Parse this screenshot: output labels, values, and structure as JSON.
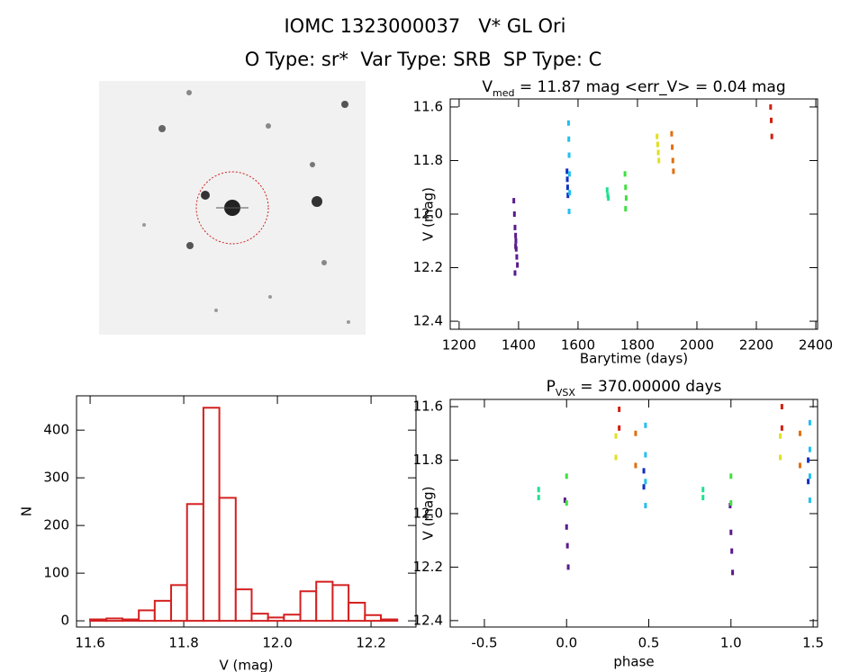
{
  "header": {
    "title": "IOMC 1323000037   V* GL Ori",
    "subtitle": "O Type: sr*  Var Type: SRB  SP Type: C"
  },
  "chart_data": [
    {
      "type": "scatter",
      "title": [
        "V",
        "med",
        " = 11.87 mag <err_V> = 0.04 mag"
      ],
      "xlabel": "Barytime (days)",
      "ylabel": "V (mag)",
      "xlim": [
        1170,
        2406
      ],
      "xticks": [
        1200,
        1400,
        1600,
        1800,
        2000,
        2200,
        2400
      ],
      "ylim": [
        12.43,
        11.57
      ],
      "yticks": [
        11.6,
        11.8,
        {
          "value": 12.0,
          "label": "12.0"
        },
        12.2,
        12.4
      ],
      "series": [
        {
          "color": "#5a1a8c",
          "x": [
            1384,
            1386,
            1388,
            1390,
            1391,
            1392,
            1394,
            1396,
            1388,
            1390
          ],
          "values": [
            11.95,
            12.0,
            12.05,
            12.08,
            12.1,
            12.13,
            12.16,
            12.19,
            12.22,
            12.12
          ]
        },
        {
          "color": "#1030c0",
          "x": [
            1563,
            1564,
            1565,
            1566
          ],
          "values": [
            11.84,
            11.87,
            11.9,
            11.93
          ]
        },
        {
          "color": "#20c0f0",
          "x": [
            1568,
            1569,
            1570,
            1571,
            1572,
            1570
          ],
          "values": [
            11.66,
            11.72,
            11.78,
            11.85,
            11.92,
            11.99
          ]
        },
        {
          "color": "#20e090",
          "x": [
            1698,
            1700,
            1702
          ],
          "values": [
            11.91,
            11.93,
            11.94
          ]
        },
        {
          "color": "#40e040",
          "x": [
            1758,
            1760,
            1762,
            1760
          ],
          "values": [
            11.85,
            11.9,
            11.94,
            11.98
          ]
        },
        {
          "color": "#e0e020",
          "x": [
            1866,
            1868,
            1870,
            1872
          ],
          "values": [
            11.71,
            11.74,
            11.77,
            11.8
          ]
        },
        {
          "color": "#e07010",
          "x": [
            1915,
            1917,
            1919,
            1921
          ],
          "values": [
            11.7,
            11.75,
            11.8,
            11.84
          ]
        },
        {
          "color": "#d02010",
          "x": [
            2248,
            2250,
            2252
          ],
          "values": [
            11.6,
            11.65,
            11.71
          ]
        }
      ]
    },
    {
      "type": "histogram",
      "xlabel": "V (mag)",
      "ylabel": "N",
      "color": "#d42020",
      "xlim": [
        11.571,
        12.296
      ],
      "xticks": [
        11.6,
        11.8,
        {
          "value": 12.0,
          "label": "12.0"
        },
        12.2
      ],
      "ylim": [
        -13,
        472
      ],
      "yticks": [
        0,
        100,
        200,
        300,
        400
      ],
      "bins": [
        11.6,
        11.635,
        11.669,
        11.704,
        11.738,
        11.773,
        11.807,
        11.842,
        11.876,
        11.911,
        11.945,
        11.98,
        12.014,
        12.049,
        12.083,
        12.118,
        12.152,
        12.187,
        12.221,
        12.256
      ],
      "counts": [
        3,
        5,
        3,
        22,
        42,
        75,
        245,
        447,
        258,
        66,
        15,
        7,
        13,
        62,
        82,
        75,
        38,
        12,
        3
      ]
    },
    {
      "type": "scatter",
      "title": [
        "P",
        "VSX",
        " = 370.00000 days"
      ],
      "xlabel": "phase",
      "ylabel": "V (mag)",
      "xlim": [
        -0.708,
        1.527
      ],
      "xticks": [
        -0.5,
        {
          "value": 0.0,
          "label": "0.0"
        },
        0.5,
        {
          "value": 1.0,
          "label": "1.0"
        },
        1.5
      ],
      "ylim": [
        12.424,
        11.573
      ],
      "yticks": [
        11.6,
        11.8,
        {
          "value": 12.0,
          "label": "12.0"
        },
        12.2,
        12.4
      ],
      "series": [
        {
          "color": "#5a1a8c",
          "x": [
            -0.01,
            0.0,
            0.005,
            0.01,
            0.995,
            1.0,
            1.005,
            1.01
          ],
          "values": [
            11.95,
            12.05,
            12.12,
            12.2,
            11.97,
            12.07,
            12.14,
            12.22
          ]
        },
        {
          "color": "#1030c0",
          "x": [
            0.47,
            0.47,
            1.47,
            1.47
          ],
          "values": [
            11.84,
            11.9,
            11.8,
            11.88
          ]
        },
        {
          "color": "#20c0f0",
          "x": [
            0.48,
            0.48,
            0.48,
            0.48,
            1.48,
            1.48,
            1.48,
            1.48
          ],
          "values": [
            11.67,
            11.78,
            11.88,
            11.97,
            11.66,
            11.76,
            11.86,
            11.95
          ]
        },
        {
          "color": "#20e090",
          "x": [
            -0.17,
            -0.17,
            0.83,
            0.83
          ],
          "values": [
            11.91,
            11.94,
            11.91,
            11.94
          ]
        },
        {
          "color": "#40e040",
          "x": [
            0.0,
            0.0,
            1.0,
            1.0
          ],
          "values": [
            11.86,
            11.96,
            11.86,
            11.96
          ]
        },
        {
          "color": "#e0e020",
          "x": [
            0.3,
            0.3,
            1.3,
            1.3
          ],
          "values": [
            11.71,
            11.79,
            11.71,
            11.79
          ]
        },
        {
          "color": "#e07010",
          "x": [
            0.42,
            0.42,
            1.42,
            1.42
          ],
          "values": [
            11.7,
            11.82,
            11.7,
            11.82
          ]
        },
        {
          "color": "#d02010",
          "x": [
            0.32,
            0.32,
            1.31,
            1.31
          ],
          "values": [
            11.61,
            11.68,
            11.6,
            11.68
          ]
        }
      ]
    }
  ]
}
